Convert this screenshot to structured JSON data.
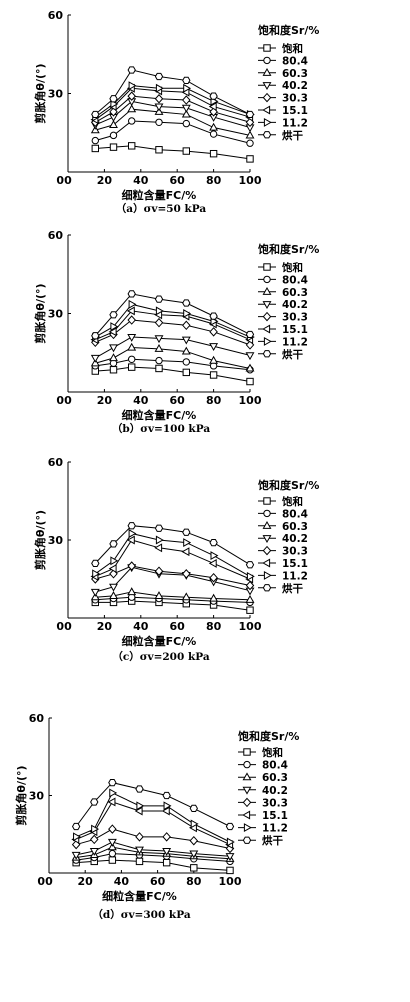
{
  "chart_data": [
    {
      "type": "line",
      "caption": "（a）σv=50 kPa",
      "xlabel": "细粒含量FC/%",
      "ylabel": "剪胀角θ/(°)",
      "xlim": [
        0,
        100
      ],
      "ylim": [
        0,
        60
      ],
      "xticks": [
        0,
        20,
        40,
        60,
        80,
        100
      ],
      "yticks": [
        0,
        30,
        60
      ],
      "legend_title": "饱和度Sr/%",
      "x": [
        15,
        25,
        35,
        50,
        65,
        80,
        100
      ],
      "series": [
        {
          "name": "饱和",
          "marker": "square",
          "values": [
            9,
            9.5,
            10,
            8.5,
            8,
            7,
            5
          ]
        },
        {
          "name": "80.4",
          "marker": "circle",
          "values": [
            12,
            14,
            19.5,
            19,
            18.5,
            14.5,
            11
          ]
        },
        {
          "name": "60.3",
          "marker": "triangle-up",
          "values": [
            16,
            18,
            24,
            23,
            22,
            17,
            14
          ]
        },
        {
          "name": "40.2",
          "marker": "triangle-down",
          "values": [
            18,
            21,
            27,
            25,
            24.5,
            21,
            17
          ]
        },
        {
          "name": "30.3",
          "marker": "diamond",
          "values": [
            19,
            23,
            29,
            28,
            27.5,
            23,
            19
          ]
        },
        {
          "name": "15.1",
          "marker": "triangle-left",
          "values": [
            20,
            25,
            32,
            31,
            30.5,
            25,
            21
          ]
        },
        {
          "name": "11.2",
          "marker": "triangle-right",
          "values": [
            21,
            26,
            33,
            32,
            32,
            27,
            22
          ]
        },
        {
          "name": "烘干",
          "marker": "hexagon",
          "values": [
            22,
            28,
            39,
            36.5,
            35,
            29,
            22
          ]
        }
      ]
    },
    {
      "type": "line",
      "caption": "（b）σv=100 kPa",
      "xlabel": "细粒含量FC/%",
      "ylabel": "剪胀角θ/(°)",
      "xlim": [
        0,
        100
      ],
      "ylim": [
        0,
        60
      ],
      "xticks": [
        0,
        20,
        40,
        60,
        80,
        100
      ],
      "yticks": [
        0,
        30,
        60
      ],
      "legend_title": "饱和度Sr/%",
      "x": [
        15,
        25,
        35,
        50,
        65,
        80,
        100
      ],
      "series": [
        {
          "name": "饱和",
          "marker": "square",
          "values": [
            8,
            8.5,
            9.5,
            9,
            7.5,
            6.5,
            4
          ]
        },
        {
          "name": "80.4",
          "marker": "circle",
          "values": [
            10,
            11,
            12.5,
            12,
            11.5,
            10,
            8.5
          ]
        },
        {
          "name": "60.3",
          "marker": "triangle-up",
          "values": [
            11,
            13,
            17,
            16.5,
            15.5,
            12,
            9
          ]
        },
        {
          "name": "40.2",
          "marker": "triangle-down",
          "values": [
            13,
            17,
            21,
            20.5,
            20,
            17.5,
            14
          ]
        },
        {
          "name": "30.3",
          "marker": "diamond",
          "values": [
            19,
            22,
            27.5,
            26.5,
            25.5,
            23,
            18
          ]
        },
        {
          "name": "15.1",
          "marker": "triangle-left",
          "values": [
            20,
            23,
            31,
            29.5,
            29,
            26,
            20
          ]
        },
        {
          "name": "11.2",
          "marker": "triangle-right",
          "values": [
            21,
            25,
            33.5,
            31,
            30,
            27,
            21
          ]
        },
        {
          "name": "烘干",
          "marker": "hexagon",
          "values": [
            21.5,
            29.5,
            37.5,
            35.5,
            34,
            29,
            22
          ]
        }
      ]
    },
    {
      "type": "line",
      "caption": "（c）σv=200 kPa",
      "xlabel": "细粒含量FC/%",
      "ylabel": "剪胀角θ/(°)",
      "xlim": [
        0,
        100
      ],
      "ylim": [
        0,
        60
      ],
      "xticks": [
        0,
        20,
        40,
        60,
        80,
        100
      ],
      "yticks": [
        0,
        30,
        60
      ],
      "legend_title": "饱和度Sr/%",
      "x": [
        15,
        25,
        35,
        50,
        65,
        80,
        100
      ],
      "series": [
        {
          "name": "饱和",
          "marker": "square",
          "values": [
            6,
            6,
            6.5,
            6,
            5.5,
            5,
            3
          ]
        },
        {
          "name": "80.4",
          "marker": "circle",
          "values": [
            7,
            7.5,
            8,
            7.5,
            7,
            6.5,
            6
          ]
        },
        {
          "name": "60.3",
          "marker": "triangle-up",
          "values": [
            8,
            8.5,
            10,
            8.5,
            8,
            7.5,
            7
          ]
        },
        {
          "name": "40.2",
          "marker": "triangle-down",
          "values": [
            10,
            12,
            19.5,
            17,
            16.5,
            14,
            10.5
          ]
        },
        {
          "name": "30.3",
          "marker": "diamond",
          "values": [
            15,
            17,
            20,
            18,
            17,
            15.5,
            12.5
          ]
        },
        {
          "name": "15.1",
          "marker": "triangle-left",
          "values": [
            16,
            19,
            30,
            27,
            25.5,
            21,
            15
          ]
        },
        {
          "name": "11.2",
          "marker": "triangle-right",
          "values": [
            17,
            22,
            32.5,
            30,
            29,
            24,
            16
          ]
        },
        {
          "name": "烘干",
          "marker": "hexagon",
          "values": [
            21,
            28.5,
            35.5,
            34.5,
            33,
            29,
            20.5
          ]
        }
      ]
    },
    {
      "type": "line",
      "caption": "（d）σv=300 kPa",
      "xlabel": "细粒含量FC/%",
      "ylabel": "剪胀角θ/(°)",
      "xlim": [
        0,
        100
      ],
      "ylim": [
        0,
        60
      ],
      "xticks": [
        0,
        20,
        40,
        60,
        80,
        100
      ],
      "yticks": [
        0,
        30,
        60
      ],
      "legend_title": "饱和度Sr/%",
      "x": [
        15,
        25,
        35,
        50,
        65,
        80,
        100
      ],
      "series": [
        {
          "name": "饱和",
          "marker": "square",
          "values": [
            4,
            4.5,
            5,
            4.5,
            4,
            2,
            1
          ]
        },
        {
          "name": "80.4",
          "marker": "circle",
          "values": [
            5,
            6,
            7.5,
            7,
            6.5,
            5.5,
            4.5
          ]
        },
        {
          "name": "60.3",
          "marker": "triangle-up",
          "values": [
            6,
            7,
            10,
            8,
            7.5,
            6.5,
            5.5
          ]
        },
        {
          "name": "40.2",
          "marker": "triangle-down",
          "values": [
            7,
            8.5,
            12,
            9,
            8.5,
            7.5,
            6.5
          ]
        },
        {
          "name": "30.3",
          "marker": "diamond",
          "values": [
            11,
            13,
            17,
            14,
            14,
            12.5,
            9.5
          ]
        },
        {
          "name": "15.1",
          "marker": "triangle-left",
          "values": [
            13,
            16,
            27.5,
            24,
            24,
            17.5,
            11
          ]
        },
        {
          "name": "11.2",
          "marker": "triangle-right",
          "values": [
            14,
            17,
            31,
            26,
            26,
            19,
            12
          ]
        },
        {
          "name": "烘干",
          "marker": "hexagon",
          "values": [
            18,
            27.5,
            35,
            32.5,
            30,
            25,
            18
          ]
        }
      ]
    }
  ]
}
